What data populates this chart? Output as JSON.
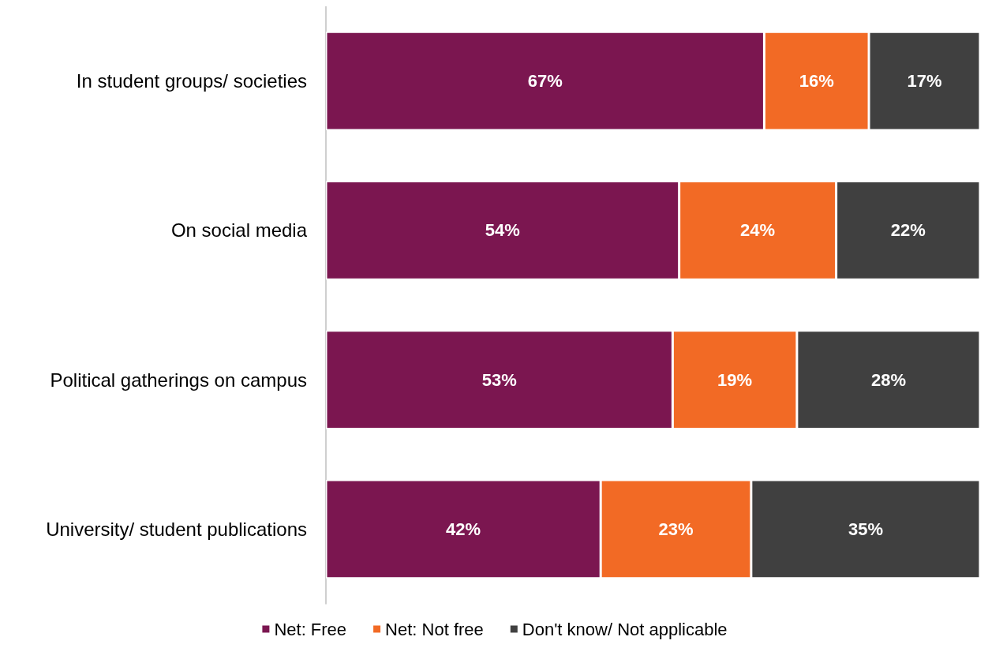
{
  "chart_data": {
    "type": "bar",
    "orientation": "horizontal",
    "stacked": true,
    "categories": [
      "In student groups/ societies",
      "On social media",
      "Political gatherings on campus",
      "University/ student publications"
    ],
    "series": [
      {
        "name": "Net: Free",
        "color": "#7b1650",
        "values": [
          67,
          54,
          53,
          42
        ],
        "value_labels": [
          "67%",
          "54%",
          "53%",
          "42%"
        ]
      },
      {
        "name": "Net: Not free",
        "color": "#f26a25",
        "values": [
          16,
          24,
          19,
          23
        ],
        "value_labels": [
          "16%",
          "24%",
          "19%",
          "23%"
        ]
      },
      {
        "name": "Don't know/ Not applicable",
        "color": "#404040",
        "values": [
          17,
          22,
          28,
          35
        ],
        "value_labels": [
          "17%",
          "22%",
          "28%",
          "35%"
        ]
      }
    ],
    "xlim": [
      0,
      100
    ],
    "tick_labels": "y",
    "grid": false,
    "legend": "bottom"
  }
}
